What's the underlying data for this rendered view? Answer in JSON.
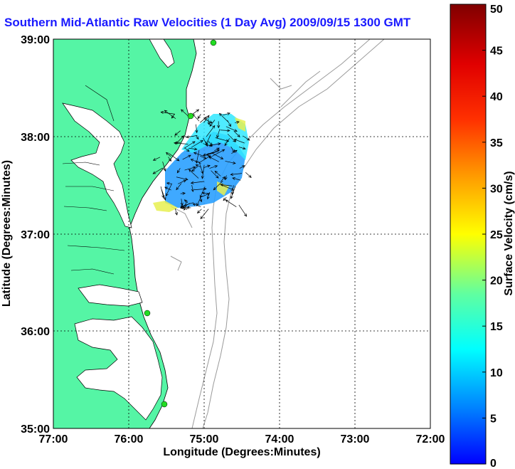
{
  "title": "Southern Mid-Atlantic Raw Velocities (1 Day Avg) 2009/09/15 1300 GMT",
  "map": {
    "xlabel": "Longitude (Degrees:Minutes)",
    "ylabel": "Latitude (Degrees:Minutes)",
    "x_ticks": [
      "77:00",
      "76:00",
      "75:00",
      "74:00",
      "73:00",
      "72:00"
    ],
    "y_ticks": [
      "39:00",
      "38:00",
      "37:00",
      "36:00",
      "35:00"
    ],
    "colors": {
      "land": "#55f5a5",
      "contour": "#9a9a9a",
      "station": "#22dd22",
      "title": "#1a1aff"
    }
  },
  "colorbar": {
    "label": "Surface Velocity (cm/s)",
    "min": 0,
    "max": 50,
    "ticks": [
      "0",
      "5",
      "10",
      "15",
      "20",
      "25",
      "30",
      "35",
      "40",
      "45",
      "50"
    ]
  }
}
